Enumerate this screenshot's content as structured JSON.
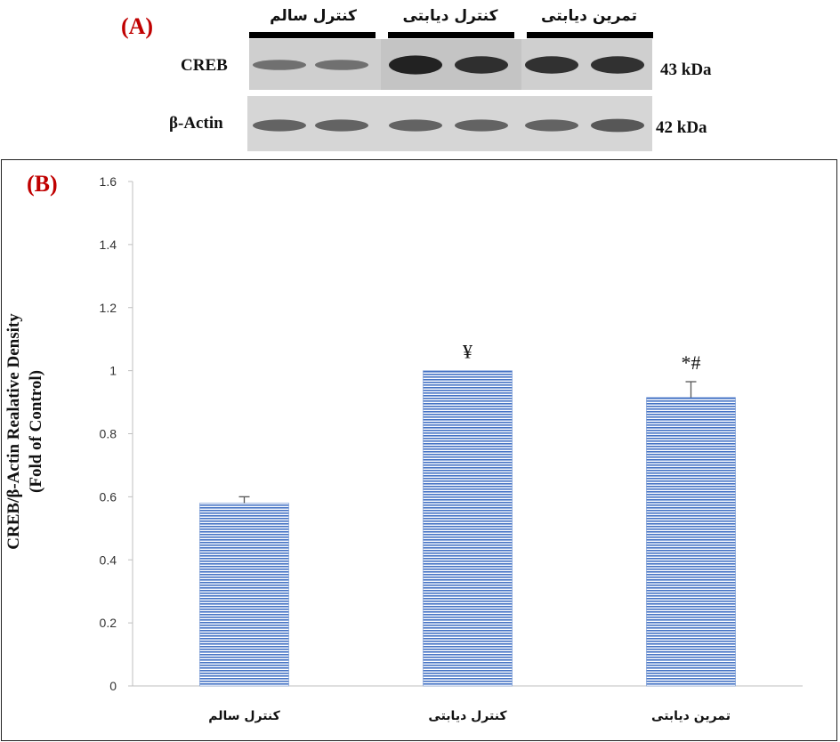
{
  "panel_a": {
    "letter": "(A)",
    "groups": [
      "کنترل سالم",
      "کنترل دیابتی",
      "تمرین دیابتی"
    ],
    "rows": [
      {
        "protein": "CREB",
        "weight": "43 kDa",
        "band_intensity": [
          0.35,
          0.35,
          0.95,
          0.85,
          0.85,
          0.85
        ]
      },
      {
        "protein": "β-Actin",
        "weight": "42 kDa",
        "band_intensity": [
          0.45,
          0.45,
          0.45,
          0.45,
          0.45,
          0.55
        ]
      }
    ]
  },
  "panel_b": {
    "letter": "(B)",
    "ylabel_line1": "CREB/β-Actin  Realative Density",
    "ylabel_line2": "(Fold of Control)"
  },
  "chart_data": {
    "type": "bar",
    "categories": [
      "کنترل سالم",
      "کنترل دیابتی",
      "تمرین دیابتی"
    ],
    "values": [
      0.58,
      1.0,
      0.915
    ],
    "errors": [
      0.02,
      0.0,
      0.05
    ],
    "annotations": [
      "",
      "¥",
      "*#"
    ],
    "ylim": [
      0,
      1.6
    ],
    "yticks": [
      "0",
      "0.2",
      "0.4",
      "0.6",
      "0.8",
      "1",
      "1.2",
      "1.4",
      "1.6"
    ],
    "bar_color": "#4472c4",
    "grid": false
  }
}
